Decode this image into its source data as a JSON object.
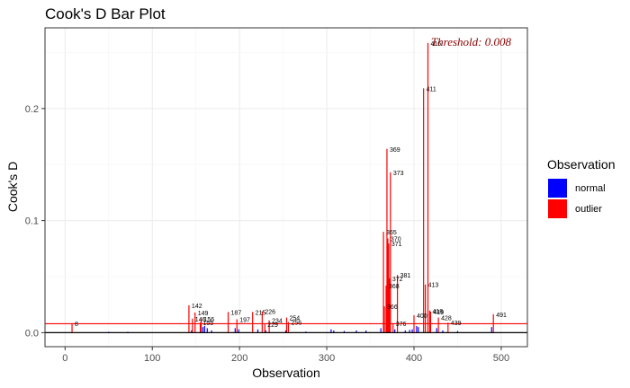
{
  "chart_data": {
    "type": "bar",
    "title": "Cook's D Bar Plot",
    "xlabel": "Observation",
    "ylabel": "Cook's D",
    "xlim": [
      -23,
      530
    ],
    "ylim": [
      -0.0125,
      0.272
    ],
    "x_ticks": [
      0,
      100,
      200,
      300,
      400,
      500
    ],
    "y_ticks": [
      0.0,
      0.1,
      0.2
    ],
    "y_tick_labels": [
      "0.0",
      "0.1",
      "0.2"
    ],
    "grid": true,
    "threshold": 0.008,
    "threshold_label": "Threshold: 0.008",
    "colors": {
      "normal": "#0000ff",
      "outlier": "#ff0000",
      "threshold": "#ff0000",
      "baseline": "#000000",
      "threshold_text": "#8b0000"
    },
    "legend": {
      "title": "Observation",
      "position": "right",
      "entries": [
        {
          "key": "normal",
          "label": "normal"
        },
        {
          "key": "outlier",
          "label": "outlier"
        }
      ]
    },
    "outliers": [
      {
        "x": 8,
        "y": 0.0085,
        "label": "8"
      },
      {
        "x": 142,
        "y": 0.0245,
        "label": "142"
      },
      {
        "x": 149,
        "y": 0.018,
        "label": "149"
      },
      {
        "x": 146,
        "y": 0.0125,
        "label": "146"
      },
      {
        "x": 156,
        "y": 0.0125,
        "label": "156"
      },
      {
        "x": 155,
        "y": 0.009,
        "label": "155"
      },
      {
        "x": 187,
        "y": 0.0185,
        "label": "187"
      },
      {
        "x": 197,
        "y": 0.012,
        "label": "197"
      },
      {
        "x": 215,
        "y": 0.0185,
        "label": "215"
      },
      {
        "x": 226,
        "y": 0.019,
        "label": "226"
      },
      {
        "x": 229,
        "y": 0.0075,
        "label": "229"
      },
      {
        "x": 234,
        "y": 0.011,
        "label": "234"
      },
      {
        "x": 254,
        "y": 0.0135,
        "label": "254"
      },
      {
        "x": 256,
        "y": 0.0095,
        "label": "256"
      },
      {
        "x": 365,
        "y": 0.09,
        "label": "365"
      },
      {
        "x": 366,
        "y": 0.0235,
        "label": "366"
      },
      {
        "x": 368,
        "y": 0.042,
        "label": "368"
      },
      {
        "x": 369,
        "y": 0.164,
        "label": "369"
      },
      {
        "x": 370,
        "y": 0.084,
        "label": "370"
      },
      {
        "x": 371,
        "y": 0.0795,
        "label": "371"
      },
      {
        "x": 372,
        "y": 0.0485,
        "label": "372"
      },
      {
        "x": 373,
        "y": 0.143,
        "label": "373"
      },
      {
        "x": 376,
        "y": 0.0085,
        "label": "376"
      },
      {
        "x": 381,
        "y": 0.0515,
        "label": "381"
      },
      {
        "x": 400,
        "y": 0.0155,
        "label": "400"
      },
      {
        "x": 411,
        "y": 0.218,
        "label": "411"
      },
      {
        "x": 413,
        "y": 0.043,
        "label": "413"
      },
      {
        "x": 416,
        "y": 0.2585,
        "label": "416"
      },
      {
        "x": 418,
        "y": 0.0197,
        "label": "418"
      },
      {
        "x": 419,
        "y": 0.0188,
        "label": "419"
      },
      {
        "x": 428,
        "y": 0.0135,
        "label": "428"
      },
      {
        "x": 439,
        "y": 0.009,
        "label": "439"
      },
      {
        "x": 491,
        "y": 0.0165,
        "label": "491"
      }
    ],
    "normal_bars": [
      {
        "x": 50,
        "y": 0.0008
      },
      {
        "x": 72,
        "y": 0.0008
      },
      {
        "x": 145,
        "y": 0.002
      },
      {
        "x": 158,
        "y": 0.005
      },
      {
        "x": 160,
        "y": 0.006
      },
      {
        "x": 163,
        "y": 0.004
      },
      {
        "x": 168,
        "y": 0.002
      },
      {
        "x": 195,
        "y": 0.004
      },
      {
        "x": 199,
        "y": 0.003
      },
      {
        "x": 221,
        "y": 0.003
      },
      {
        "x": 230,
        "y": 0.002
      },
      {
        "x": 253,
        "y": 0.002
      },
      {
        "x": 276,
        "y": 0.001
      },
      {
        "x": 305,
        "y": 0.003
      },
      {
        "x": 308,
        "y": 0.002
      },
      {
        "x": 320,
        "y": 0.0015
      },
      {
        "x": 334,
        "y": 0.002
      },
      {
        "x": 345,
        "y": 0.002
      },
      {
        "x": 362,
        "y": 0.004
      },
      {
        "x": 378,
        "y": 0.003
      },
      {
        "x": 390,
        "y": 0.002
      },
      {
        "x": 395,
        "y": 0.0025
      },
      {
        "x": 398,
        "y": 0.003
      },
      {
        "x": 403,
        "y": 0.006
      },
      {
        "x": 405,
        "y": 0.005
      },
      {
        "x": 426,
        "y": 0.004
      },
      {
        "x": 433,
        "y": 0.002
      },
      {
        "x": 450,
        "y": 0.0015
      },
      {
        "x": 489,
        "y": 0.005
      }
    ]
  }
}
